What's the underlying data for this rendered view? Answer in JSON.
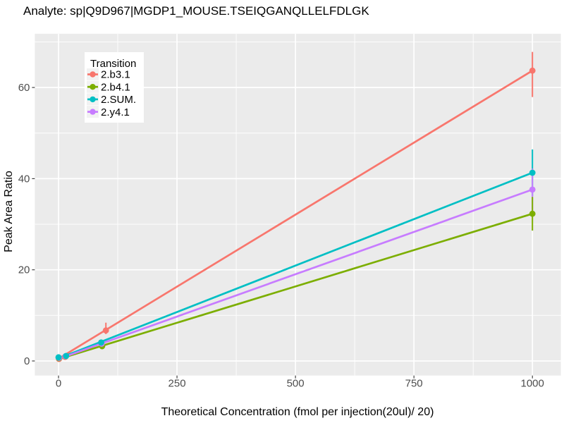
{
  "figure": {
    "background": "#FFFFFF",
    "panel_background": "#EBEBEB",
    "grid_color": "#FFFFFF",
    "tick_color": "#333333",
    "tick_label_color": "#4D4D4D",
    "legend_key_background": "#F2F2F2"
  },
  "chart_data": {
    "type": "line",
    "title": "Analyte: sp|Q9D967|MGDP1_MOUSE.TSEIQGANQLLELFDLGK",
    "xlabel": "Theoretical Concentration (fmol per injection(20ul)/ 20)",
    "ylabel": "Peak Area Ratio",
    "xlim": [
      -50,
      1060
    ],
    "ylim": [
      -3.2,
      71.8
    ],
    "x_ticks": [
      0,
      250,
      500,
      750,
      1000
    ],
    "y_ticks": [
      0,
      20,
      40,
      60
    ],
    "x_minor_ticks": [
      125,
      375,
      625,
      875
    ],
    "y_minor_ticks": [
      10,
      30,
      50,
      70
    ],
    "grid": true,
    "legend": {
      "title": "Transition",
      "position": "top-left-inside",
      "entries": [
        "2.b3.1",
        "2.b4.1",
        "2.SUM.",
        "2.y4.1"
      ]
    },
    "series": [
      {
        "name": "2.b3.1",
        "color": "#F8766D",
        "fit_line": {
          "x": [
            0,
            1000
          ],
          "y": [
            0.5,
            63.7
          ]
        },
        "points": {
          "x": [
            1,
            14,
            100,
            1000
          ],
          "y": [
            0.45,
            0.9,
            6.7,
            63.7
          ]
        },
        "error_bars": [
          {
            "x": 100,
            "ymin": 5.9,
            "ymax": 8.4
          },
          {
            "x": 1000,
            "ymin": 57.9,
            "ymax": 67.8
          }
        ]
      },
      {
        "name": "2.b4.1",
        "color": "#7CAE00",
        "fit_line": {
          "x": [
            0,
            1000
          ],
          "y": [
            0.4,
            32.3
          ]
        },
        "points": {
          "x": [
            1,
            15,
            92,
            1000
          ],
          "y": [
            0.6,
            1.0,
            3.25,
            32.3
          ]
        },
        "error_bars": [
          {
            "x": 92,
            "ymin": 2.6,
            "ymax": 3.9
          },
          {
            "x": 1000,
            "ymin": 28.6,
            "ymax": 36.0
          }
        ]
      },
      {
        "name": "2.SUM.",
        "color": "#00BFC4",
        "fit_line": {
          "x": [
            0,
            1000
          ],
          "y": [
            0.55,
            41.3
          ]
        },
        "points": {
          "x": [
            0,
            16,
            90,
            1000
          ],
          "y": [
            0.8,
            1.1,
            4.05,
            41.3
          ]
        },
        "error_bars": [
          {
            "x": 90,
            "ymin": 3.5,
            "ymax": 4.6
          },
          {
            "x": 1000,
            "ymin": 36.2,
            "ymax": 46.4
          }
        ]
      },
      {
        "name": "2.y4.1",
        "color": "#C77CFF",
        "fit_line": {
          "x": [
            0,
            1000
          ],
          "y": [
            0.45,
            37.6
          ]
        },
        "points": {
          "x": [
            1,
            15,
            91,
            1000
          ],
          "y": [
            0.7,
            1.05,
            3.8,
            37.6
          ]
        },
        "error_bars": [
          {
            "x": 1000,
            "ymin": 33.0,
            "ymax": 42.2
          }
        ]
      }
    ]
  }
}
